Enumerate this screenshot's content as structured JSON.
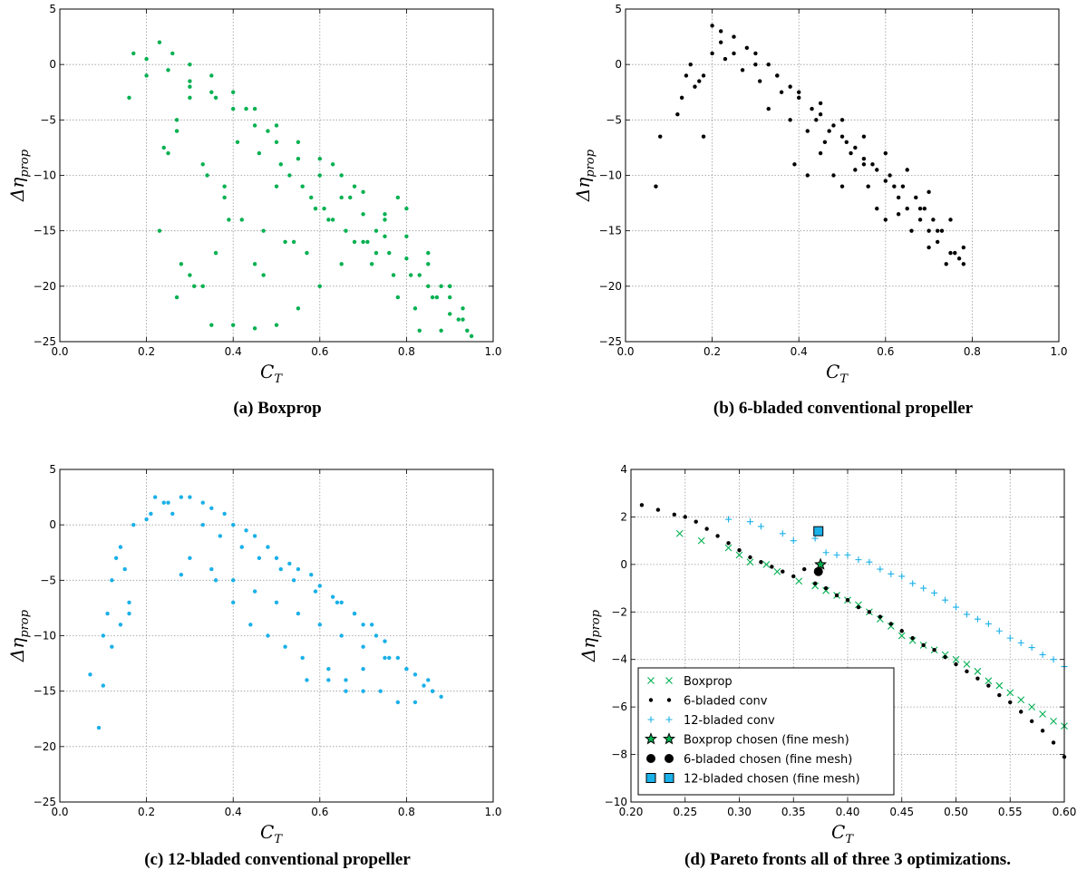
{
  "captions": {
    "a": "(a) Boxprop",
    "b": "(b) 6-bladed conventional propeller",
    "c": "(c) 12-bladed conventional propeller",
    "d": "(d) Pareto fronts all of three 3 optimizations."
  },
  "chart_data": [
    {
      "id": "a",
      "type": "scatter",
      "xlabel": "C",
      "xlabel_sub": "T",
      "ylabel": "Δη",
      "ylabel_sub": "prop",
      "xlim": [
        0.0,
        1.0
      ],
      "ylim": [
        -25,
        5
      ],
      "xticks": [
        "0.0",
        "0.2",
        "0.4",
        "0.6",
        "0.8",
        "1.0"
      ],
      "yticks": [
        "−25",
        "−20",
        "−15",
        "−10",
        "−5",
        "0",
        "5"
      ],
      "grid": true,
      "color": "#00b050",
      "series": [
        {
          "x": [
            0.16,
            0.17,
            0.2,
            0.23,
            0.26,
            0.3,
            0.35,
            0.4,
            0.45,
            0.5,
            0.55,
            0.6,
            0.65,
            0.7,
            0.75,
            0.8,
            0.85,
            0.9,
            0.93,
            0.95,
            0.2,
            0.25,
            0.3,
            0.35,
            0.4,
            0.45,
            0.5,
            0.55,
            0.6,
            0.65,
            0.7,
            0.75,
            0.8,
            0.85,
            0.9,
            0.28,
            0.3,
            0.33,
            0.36,
            0.4,
            0.45,
            0.5,
            0.55,
            0.6,
            0.65,
            0.7,
            0.75,
            0.8,
            0.85,
            0.9,
            0.24,
            0.27,
            0.3,
            0.34,
            0.38,
            0.42,
            0.47,
            0.52,
            0.57,
            0.62,
            0.67,
            0.72,
            0.77,
            0.82,
            0.87,
            0.23,
            0.27,
            0.31,
            0.35,
            0.39,
            0.45,
            0.47,
            0.5,
            0.54,
            0.59,
            0.63,
            0.68,
            0.73,
            0.78,
            0.83,
            0.88,
            0.93,
            0.27,
            0.33,
            0.38,
            0.43,
            0.48,
            0.53,
            0.58,
            0.63,
            0.68,
            0.73,
            0.78,
            0.83,
            0.88,
            0.92,
            0.25,
            0.3,
            0.36,
            0.41,
            0.46,
            0.51,
            0.56,
            0.61,
            0.66,
            0.71,
            0.76,
            0.81,
            0.86,
            0.9,
            0.94
          ],
          "y": [
            -3,
            1,
            0.5,
            2,
            1,
            0,
            -1,
            -2.5,
            -4,
            -5.5,
            -7,
            -8.5,
            -10,
            -11.5,
            -13.5,
            -15.5,
            -18,
            -21,
            -23,
            -24.5,
            -1,
            -0.5,
            -1.5,
            -2.5,
            -4,
            -5.5,
            -7,
            -8.5,
            -10,
            -12,
            -13.5,
            -15.5,
            -17.5,
            -20,
            -22.5,
            -18,
            -19,
            -20,
            -17,
            -23.5,
            -23.8,
            -23.5,
            -22,
            -20,
            -18,
            -16,
            -14,
            -13,
            -17,
            -20,
            -7.5,
            -5,
            -3,
            -10,
            -12,
            -14,
            -15,
            -16,
            -17,
            -14,
            -12,
            -18,
            -19,
            -22,
            -21,
            -15,
            -21,
            -20,
            -23.5,
            -14,
            -18,
            -19,
            -11,
            -16,
            -13,
            -9,
            -11,
            -15,
            -12,
            -19,
            -24,
            -22,
            -6,
            -9,
            -11,
            -4,
            -6,
            -10,
            -12,
            -14,
            -16,
            -17,
            -21,
            -24,
            -20,
            -23,
            -8,
            -2,
            -3,
            -7,
            -8,
            -9,
            -11,
            -13,
            -15,
            -16,
            -17,
            -19,
            -21,
            -20,
            -24
          ]
        }
      ]
    },
    {
      "id": "b",
      "type": "scatter",
      "xlabel": "C",
      "xlabel_sub": "T",
      "ylabel": "Δη",
      "ylabel_sub": "prop",
      "xlim": [
        0.0,
        1.0
      ],
      "ylim": [
        -25,
        5
      ],
      "xticks": [
        "0.0",
        "0.2",
        "0.4",
        "0.6",
        "0.8",
        "1.0"
      ],
      "yticks": [
        "−25",
        "−20",
        "−15",
        "−10",
        "−5",
        "0",
        "5"
      ],
      "grid": true,
      "color": "#000000",
      "series": [
        {
          "x": [
            0.07,
            0.08,
            0.12,
            0.13,
            0.14,
            0.15,
            0.16,
            0.17,
            0.18,
            0.18,
            0.2,
            0.22,
            0.25,
            0.28,
            0.3,
            0.33,
            0.35,
            0.38,
            0.4,
            0.43,
            0.45,
            0.48,
            0.5,
            0.53,
            0.55,
            0.58,
            0.6,
            0.63,
            0.65,
            0.68,
            0.7,
            0.72,
            0.75,
            0.77,
            0.78,
            0.22,
            0.25,
            0.3,
            0.35,
            0.4,
            0.45,
            0.5,
            0.55,
            0.6,
            0.65,
            0.7,
            0.75,
            0.39,
            0.42,
            0.45,
            0.48,
            0.5,
            0.53,
            0.56,
            0.58,
            0.6,
            0.63,
            0.66,
            0.7,
            0.74,
            0.76,
            0.78,
            0.33,
            0.38,
            0.42,
            0.46,
            0.52,
            0.55,
            0.62,
            0.68,
            0.72,
            0.2,
            0.23,
            0.27,
            0.31,
            0.36,
            0.44,
            0.47,
            0.51,
            0.57,
            0.61,
            0.64,
            0.67,
            0.69,
            0.71,
            0.73
          ],
          "y": [
            -11,
            -6.5,
            -4.5,
            -3,
            -1,
            0,
            -2,
            -1.5,
            -1,
            -6.5,
            3.5,
            3,
            2.5,
            1.5,
            1,
            0,
            -1,
            -2,
            -3,
            -4,
            -4.5,
            -5.5,
            -6.5,
            -7.5,
            -8.5,
            -9.5,
            -10.5,
            -12,
            -13,
            -14,
            -15,
            -16,
            -17,
            -17.5,
            -18,
            2,
            1,
            0,
            -1,
            -2.5,
            -3.5,
            -5,
            -6.5,
            -8,
            -9.5,
            -11.5,
            -14,
            -9,
            -10,
            -8,
            -10,
            -11,
            -9.5,
            -11,
            -13,
            -14,
            -13.5,
            -15,
            -16.5,
            -18,
            -17,
            -16.5,
            -4,
            -5,
            -6,
            -7,
            -8,
            -9,
            -11,
            -13,
            -15,
            1,
            0.5,
            -0.5,
            -1.5,
            -2.5,
            -5,
            -6,
            -7,
            -9,
            -10,
            -11,
            -12,
            -13,
            -14,
            -15
          ]
        }
      ]
    },
    {
      "id": "c",
      "type": "scatter",
      "xlabel": "C",
      "xlabel_sub": "T",
      "ylabel": "Δη",
      "ylabel_sub": "prop",
      "xlim": [
        0.0,
        1.0
      ],
      "ylim": [
        -25,
        5
      ],
      "xticks": [
        "0.0",
        "0.2",
        "0.4",
        "0.6",
        "0.8",
        "1.0"
      ],
      "yticks": [
        "−25",
        "−20",
        "−15",
        "−10",
        "−5",
        "0",
        "5"
      ],
      "grid": true,
      "color": "#1ab0e8",
      "series": [
        {
          "x": [
            0.07,
            0.09,
            0.1,
            0.11,
            0.12,
            0.13,
            0.14,
            0.15,
            0.16,
            0.17,
            0.2,
            0.22,
            0.25,
            0.28,
            0.3,
            0.33,
            0.35,
            0.38,
            0.4,
            0.43,
            0.45,
            0.48,
            0.5,
            0.53,
            0.55,
            0.58,
            0.6,
            0.63,
            0.65,
            0.68,
            0.7,
            0.73,
            0.75,
            0.78,
            0.8,
            0.82,
            0.84,
            0.86,
            0.88,
            0.28,
            0.3,
            0.35,
            0.4,
            0.45,
            0.5,
            0.55,
            0.6,
            0.65,
            0.7,
            0.75,
            0.8,
            0.85,
            0.1,
            0.12,
            0.14,
            0.16,
            0.36,
            0.4,
            0.44,
            0.48,
            0.52,
            0.56,
            0.62,
            0.66,
            0.7,
            0.74,
            0.78,
            0.82,
            0.86,
            0.57,
            0.62,
            0.66,
            0.7,
            0.76,
            0.21,
            0.24,
            0.26,
            0.33,
            0.37,
            0.42,
            0.46,
            0.51,
            0.54,
            0.59,
            0.64,
            0.68,
            0.72
          ],
          "y": [
            -13.5,
            -18.3,
            -10,
            -8,
            -5,
            -3,
            -2,
            -4,
            -8,
            0,
            0.5,
            2.5,
            2,
            2.5,
            2.5,
            2,
            1.5,
            1,
            0,
            -0.5,
            -1,
            -2,
            -3,
            -3.5,
            -4,
            -4.5,
            -5.5,
            -6.5,
            -7,
            -8,
            -9,
            -10,
            -10.5,
            -12,
            -13,
            -13.5,
            -14.5,
            -15,
            -15.5,
            -4.5,
            -3,
            -4,
            -5,
            -6,
            -7,
            -8,
            -9,
            -10,
            -11,
            -12,
            -13,
            -14,
            -14.5,
            -11,
            -9,
            -7,
            -5,
            -7,
            -9,
            -10,
            -11,
            -12,
            -13,
            -14,
            -15,
            -15,
            -16,
            -16,
            -15,
            -14,
            -14,
            -15,
            -13,
            -12,
            1,
            2,
            1,
            0,
            -1,
            -2,
            -3,
            -4,
            -5,
            -6,
            -7,
            -8,
            -9
          ]
        }
      ]
    },
    {
      "id": "d",
      "type": "scatter",
      "xlabel": "C",
      "xlabel_sub": "T",
      "ylabel": "Δη",
      "ylabel_sub": "prop",
      "xlim": [
        0.2,
        0.6
      ],
      "ylim": [
        -10,
        4
      ],
      "xticks": [
        "0.20",
        "0.25",
        "0.30",
        "0.35",
        "0.40",
        "0.45",
        "0.50",
        "0.55",
        "0.60"
      ],
      "yticks": [
        "−10",
        "−8",
        "−6",
        "−4",
        "−2",
        "0",
        "2",
        "4"
      ],
      "grid": true,
      "legend": "lower-left",
      "series": [
        {
          "name": "Boxprop",
          "marker": "x",
          "color": "#00b050",
          "x": [
            0.245,
            0.265,
            0.29,
            0.3,
            0.31,
            0.325,
            0.335,
            0.355,
            0.37,
            0.38,
            0.39,
            0.4,
            0.41,
            0.42,
            0.43,
            0.44,
            0.45,
            0.46,
            0.47,
            0.48,
            0.49,
            0.5,
            0.51,
            0.52,
            0.53,
            0.54,
            0.55,
            0.56,
            0.57,
            0.58,
            0.59,
            0.6
          ],
          "y": [
            1.3,
            1.0,
            0.7,
            0.4,
            0.1,
            0,
            -0.3,
            -0.7,
            -0.9,
            -1.1,
            -1.3,
            -1.5,
            -1.7,
            -2.0,
            -2.3,
            -2.6,
            -3.0,
            -3.2,
            -3.4,
            -3.6,
            -3.8,
            -4.0,
            -4.2,
            -4.5,
            -4.9,
            -5.1,
            -5.4,
            -5.7,
            -6.0,
            -6.3,
            -6.6,
            -6.8
          ]
        },
        {
          "name": "6-bladed conv",
          "marker": "dot",
          "color": "#000000",
          "x": [
            0.21,
            0.225,
            0.24,
            0.25,
            0.26,
            0.27,
            0.28,
            0.29,
            0.3,
            0.31,
            0.32,
            0.33,
            0.34,
            0.35,
            0.36,
            0.37,
            0.38,
            0.39,
            0.4,
            0.41,
            0.42,
            0.43,
            0.44,
            0.45,
            0.46,
            0.47,
            0.48,
            0.49,
            0.5,
            0.51,
            0.52,
            0.53,
            0.54,
            0.55,
            0.56,
            0.57,
            0.58,
            0.59,
            0.6
          ],
          "y": [
            2.5,
            2.3,
            2.1,
            2.0,
            1.8,
            1.5,
            1.2,
            0.9,
            0.6,
            0.3,
            0.1,
            -0.1,
            -0.3,
            -0.5,
            -0.2,
            -0.8,
            -1.0,
            -1.3,
            -1.5,
            -1.8,
            -2.0,
            -2.2,
            -2.5,
            -2.8,
            -3.1,
            -3.4,
            -3.6,
            -3.9,
            -4.2,
            -4.5,
            -4.8,
            -5.1,
            -5.5,
            -5.8,
            -6.2,
            -6.6,
            -7.0,
            -7.5,
            -8.1
          ]
        },
        {
          "name": "12-bladed conv",
          "marker": "plus",
          "color": "#1ab0e8",
          "x": [
            0.29,
            0.31,
            0.32,
            0.34,
            0.35,
            0.37,
            0.38,
            0.39,
            0.4,
            0.41,
            0.42,
            0.43,
            0.44,
            0.45,
            0.46,
            0.47,
            0.48,
            0.49,
            0.5,
            0.51,
            0.52,
            0.53,
            0.54,
            0.55,
            0.56,
            0.57,
            0.58,
            0.59,
            0.6
          ],
          "y": [
            1.9,
            1.8,
            1.6,
            1.3,
            1.0,
            1.1,
            0.5,
            0.4,
            0.4,
            0.2,
            0.1,
            -0.2,
            -0.4,
            -0.5,
            -0.8,
            -1.0,
            -1.2,
            -1.5,
            -1.8,
            -2.1,
            -2.3,
            -2.5,
            -2.8,
            -3.1,
            -3.3,
            -3.5,
            -3.8,
            -4.0,
            -4.3
          ]
        },
        {
          "name": "Boxprop chosen (fine mesh)",
          "marker": "star",
          "color": "#00b050",
          "x": [
            0.375
          ],
          "y": [
            0.0
          ]
        },
        {
          "name": "6-bladed chosen (fine mesh)",
          "marker": "circle",
          "color": "#000000",
          "x": [
            0.373
          ],
          "y": [
            -0.3
          ]
        },
        {
          "name": "12-bladed chosen (fine mesh)",
          "marker": "square",
          "color": "#1ab0e8",
          "x": [
            0.373
          ],
          "y": [
            1.4
          ]
        }
      ]
    }
  ]
}
